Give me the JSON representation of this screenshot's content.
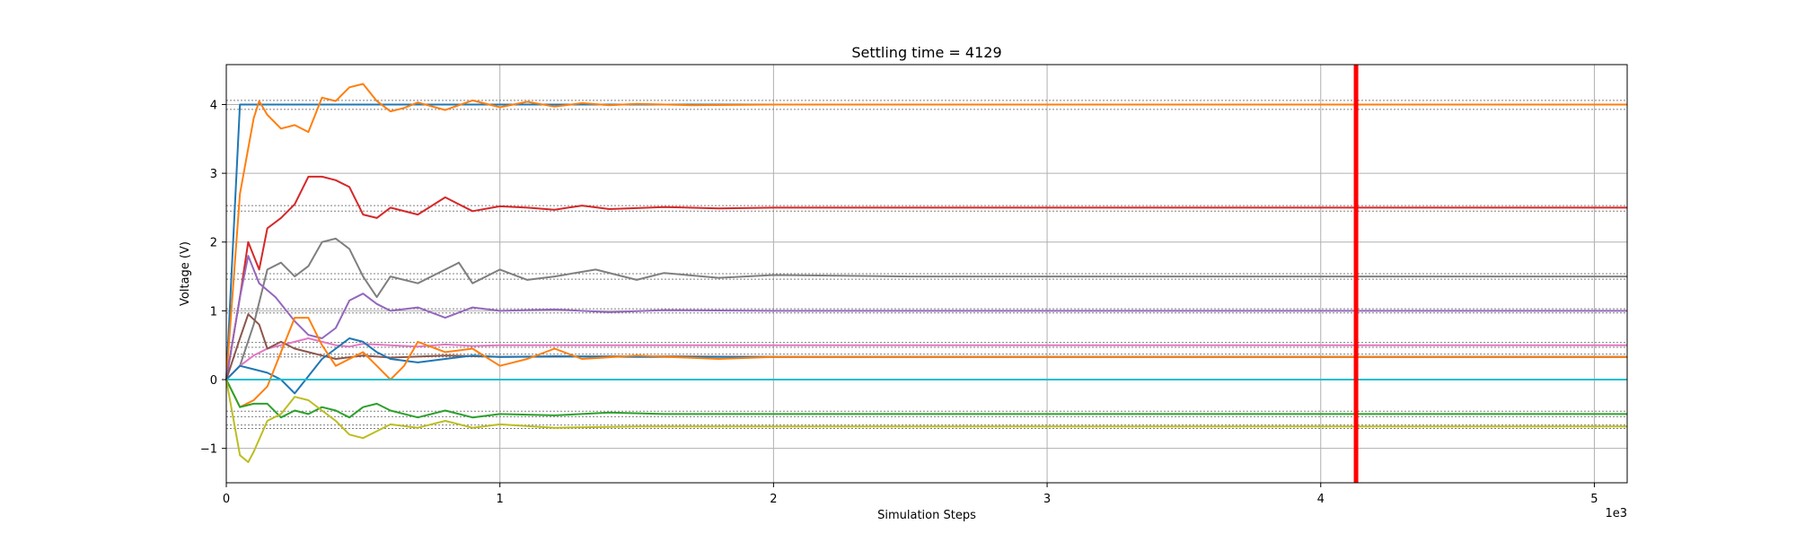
{
  "chart_data": {
    "type": "line",
    "title": "Settling time = 4129",
    "xlabel": "Simulation Steps",
    "ylabel": "Voltage (V)",
    "x_offset_label": "1e3",
    "xlim": [
      0,
      5.12
    ],
    "ylim": [
      -1.5,
      4.58
    ],
    "xticks": [
      0,
      1,
      2,
      3,
      4,
      5
    ],
    "xtick_labels": [
      "0",
      "1",
      "2",
      "3",
      "4",
      "5"
    ],
    "yticks": [
      -1,
      0,
      1,
      2,
      3,
      4
    ],
    "ytick_labels": [
      "−1",
      "0",
      "1",
      "2",
      "3",
      "4"
    ],
    "grid": true,
    "settling_line": {
      "x": 4.129,
      "color": "#ff0000"
    },
    "reference_lines": [
      4.06,
      3.93,
      2.53,
      2.45,
      1.54,
      1.46,
      1.03,
      0.97,
      0.54,
      0.47,
      0.37,
      0.33,
      -0.46,
      -0.54,
      -0.66,
      -0.71
    ],
    "series": [
      {
        "color": "#1f77b4",
        "x": [
          0,
          0.05,
          0.08,
          0.1,
          5.12
        ],
        "y": [
          0,
          4.0,
          4.0,
          4.0,
          4.0
        ]
      },
      {
        "color": "#ff7f0e",
        "x": [
          0,
          0.05,
          0.1,
          0.12,
          0.15,
          0.2,
          0.25,
          0.3,
          0.35,
          0.4,
          0.45,
          0.5,
          0.55,
          0.6,
          0.65,
          0.7,
          0.8,
          0.9,
          1.0,
          1.1,
          1.2,
          1.3,
          1.4,
          1.5,
          1.7,
          2.0,
          5.12
        ],
        "y": [
          0,
          2.7,
          3.8,
          4.05,
          3.85,
          3.65,
          3.7,
          3.6,
          4.1,
          4.05,
          4.25,
          4.3,
          4.05,
          3.9,
          3.95,
          4.03,
          3.92,
          4.06,
          3.96,
          4.04,
          3.97,
          4.02,
          3.99,
          4.01,
          3.99,
          4.0,
          4.0
        ]
      },
      {
        "color": "#d62728",
        "x": [
          0,
          0.05,
          0.08,
          0.12,
          0.15,
          0.2,
          0.25,
          0.3,
          0.35,
          0.4,
          0.45,
          0.5,
          0.55,
          0.6,
          0.7,
          0.8,
          0.9,
          1.0,
          1.1,
          1.2,
          1.3,
          1.4,
          1.6,
          1.8,
          2.0,
          2.5,
          3.0,
          5.12
        ],
        "y": [
          0,
          1.2,
          2.0,
          1.6,
          2.2,
          2.35,
          2.55,
          2.95,
          2.95,
          2.9,
          2.8,
          2.4,
          2.35,
          2.5,
          2.4,
          2.65,
          2.45,
          2.52,
          2.5,
          2.47,
          2.53,
          2.48,
          2.51,
          2.49,
          2.5,
          2.5,
          2.5,
          2.5
        ]
      },
      {
        "color": "#7f7f7f",
        "x": [
          0,
          0.05,
          0.1,
          0.15,
          0.2,
          0.25,
          0.3,
          0.35,
          0.4,
          0.45,
          0.5,
          0.55,
          0.6,
          0.7,
          0.8,
          0.85,
          0.9,
          1.0,
          1.1,
          1.2,
          1.35,
          1.5,
          1.6,
          1.8,
          2.0,
          2.5,
          3.0,
          3.5,
          4.0,
          5.12
        ],
        "y": [
          0,
          0.2,
          0.8,
          1.6,
          1.7,
          1.5,
          1.65,
          2.0,
          2.05,
          1.9,
          1.5,
          1.2,
          1.5,
          1.4,
          1.6,
          1.7,
          1.4,
          1.6,
          1.45,
          1.5,
          1.6,
          1.45,
          1.55,
          1.48,
          1.52,
          1.5,
          1.5,
          1.5,
          1.5,
          1.5
        ]
      },
      {
        "color": "#9467bd",
        "x": [
          0,
          0.05,
          0.08,
          0.12,
          0.18,
          0.25,
          0.3,
          0.35,
          0.4,
          0.45,
          0.5,
          0.55,
          0.6,
          0.7,
          0.8,
          0.9,
          1.0,
          1.2,
          1.4,
          1.6,
          2.0,
          3.0,
          5.12
        ],
        "y": [
          0,
          1.2,
          1.8,
          1.4,
          1.2,
          0.85,
          0.65,
          0.6,
          0.75,
          1.15,
          1.25,
          1.1,
          1.0,
          1.05,
          0.9,
          1.05,
          1.0,
          1.02,
          0.98,
          1.01,
          1.0,
          1.0,
          1.0
        ]
      },
      {
        "color": "#e377c2",
        "x": [
          0,
          0.05,
          0.1,
          0.15,
          0.2,
          0.25,
          0.3,
          0.35,
          0.4,
          0.45,
          0.5,
          0.6,
          0.7,
          0.8,
          0.9,
          1.0,
          1.2,
          1.5,
          2.0,
          3.0,
          5.12
        ],
        "y": [
          0,
          0.2,
          0.35,
          0.45,
          0.5,
          0.55,
          0.6,
          0.55,
          0.5,
          0.48,
          0.52,
          0.5,
          0.48,
          0.51,
          0.49,
          0.5,
          0.5,
          0.5,
          0.5,
          0.5,
          0.5
        ]
      },
      {
        "color": "#8c564b",
        "x": [
          0,
          0.05,
          0.08,
          0.12,
          0.15,
          0.2,
          0.25,
          0.3,
          0.35,
          0.4,
          0.5,
          0.6,
          0.8,
          1.0,
          1.5,
          2.0,
          5.12
        ],
        "y": [
          0,
          0.6,
          0.95,
          0.8,
          0.45,
          0.55,
          0.45,
          0.4,
          0.35,
          0.3,
          0.35,
          0.32,
          0.35,
          0.33,
          0.34,
          0.33,
          0.33
        ]
      },
      {
        "color": "#1f77b4",
        "x": [
          0,
          0.05,
          0.1,
          0.15,
          0.2,
          0.25,
          0.3,
          0.35,
          0.4,
          0.45,
          0.5,
          0.55,
          0.6,
          0.7,
          0.8,
          0.9,
          1.0,
          1.2,
          1.5,
          2.0,
          5.12
        ],
        "y": [
          0,
          0.2,
          0.15,
          0.1,
          0.0,
          -0.2,
          0.05,
          0.3,
          0.45,
          0.6,
          0.55,
          0.4,
          0.3,
          0.25,
          0.3,
          0.35,
          0.33,
          0.34,
          0.33,
          0.33,
          0.33
        ]
      },
      {
        "color": "#ff7f0e",
        "x": [
          0,
          0.05,
          0.1,
          0.15,
          0.2,
          0.25,
          0.3,
          0.35,
          0.4,
          0.45,
          0.5,
          0.55,
          0.6,
          0.65,
          0.7,
          0.8,
          0.9,
          1.0,
          1.1,
          1.2,
          1.3,
          1.5,
          1.8,
          2.0,
          2.5,
          3.0,
          5.12
        ],
        "y": [
          0,
          -0.4,
          -0.3,
          -0.1,
          0.4,
          0.9,
          0.9,
          0.5,
          0.2,
          0.3,
          0.4,
          0.2,
          0.0,
          0.2,
          0.55,
          0.4,
          0.45,
          0.2,
          0.3,
          0.45,
          0.3,
          0.35,
          0.3,
          0.33,
          0.33,
          0.33,
          0.33
        ]
      },
      {
        "color": "#17becf",
        "x": [
          0,
          5.12
        ],
        "y": [
          0,
          0
        ]
      },
      {
        "color": "#2ca02c",
        "x": [
          0,
          0.05,
          0.1,
          0.15,
          0.2,
          0.25,
          0.3,
          0.35,
          0.4,
          0.45,
          0.5,
          0.55,
          0.6,
          0.7,
          0.8,
          0.9,
          1.0,
          1.2,
          1.4,
          1.6,
          2.0,
          3.0,
          5.12
        ],
        "y": [
          0,
          -0.4,
          -0.35,
          -0.35,
          -0.55,
          -0.45,
          -0.5,
          -0.4,
          -0.45,
          -0.55,
          -0.4,
          -0.35,
          -0.45,
          -0.55,
          -0.45,
          -0.55,
          -0.5,
          -0.52,
          -0.48,
          -0.5,
          -0.5,
          -0.5,
          -0.5
        ]
      },
      {
        "color": "#bcbd22",
        "x": [
          0,
          0.05,
          0.08,
          0.1,
          0.15,
          0.2,
          0.25,
          0.3,
          0.35,
          0.4,
          0.45,
          0.5,
          0.55,
          0.6,
          0.7,
          0.8,
          0.9,
          1.0,
          1.2,
          1.5,
          2.0,
          3.0,
          5.12
        ],
        "y": [
          0,
          -1.1,
          -1.2,
          -1.05,
          -0.6,
          -0.5,
          -0.25,
          -0.3,
          -0.45,
          -0.6,
          -0.8,
          -0.85,
          -0.75,
          -0.65,
          -0.7,
          -0.6,
          -0.7,
          -0.65,
          -0.7,
          -0.68,
          -0.68,
          -0.68,
          -0.68
        ]
      }
    ]
  }
}
